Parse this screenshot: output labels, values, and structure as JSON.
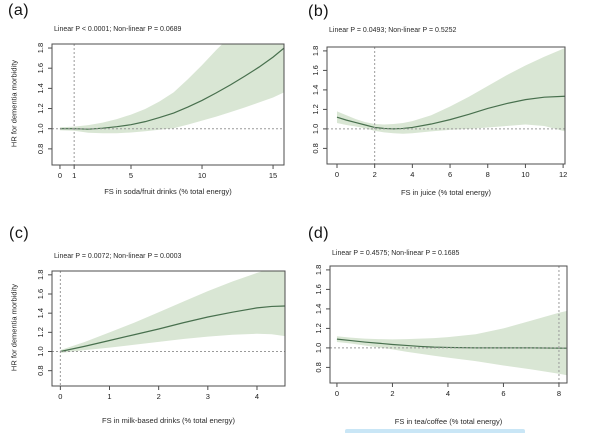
{
  "figure": {
    "background": "#ffffff",
    "description_artifact": "light-blue selection highlight strip cut off at bottom edge"
  },
  "colors": {
    "band": "#d9e6d4",
    "line": "#48704e",
    "ref": "#9a9a9a",
    "axis": "#4d4d4d",
    "tick_text": "#1b1b1b",
    "artifact": "#c9e6f6"
  },
  "chart_data": [
    {
      "type": "line",
      "panel_label": "(a)",
      "title": "Linear P < 0.0001; Non-linear P = 0.0689",
      "xlabel": "FS in soda/fruit drinks (% total energy)",
      "ylabel": "HR for dementia morbidity",
      "xlim": [
        -0.56,
        15.77
      ],
      "ylim": [
        0.64,
        1.84
      ],
      "xticks": [
        0,
        1,
        5,
        10,
        15
      ],
      "yticks": [
        0.8,
        1.0,
        1.2,
        1.4,
        1.6,
        1.8
      ],
      "hline": 1.0,
      "vline": 1,
      "grid": false,
      "legend": null,
      "series": [
        {
          "name": "HR estimate",
          "x": [
            0,
            1,
            2,
            3,
            4,
            5,
            6,
            7,
            8,
            9,
            10,
            11,
            12,
            13,
            14,
            15,
            15.77
          ],
          "y": [
            1.0,
            1.0,
            0.995,
            1.005,
            1.02,
            1.04,
            1.07,
            1.11,
            1.155,
            1.215,
            1.28,
            1.355,
            1.435,
            1.52,
            1.61,
            1.71,
            1.8
          ]
        }
      ],
      "band": {
        "x": [
          0,
          1,
          2,
          3,
          4,
          5,
          6,
          7,
          8,
          9,
          10,
          11,
          12,
          13,
          14,
          15,
          15.77
        ],
        "upper": [
          1.015,
          1.02,
          1.035,
          1.06,
          1.095,
          1.14,
          1.195,
          1.27,
          1.36,
          1.49,
          1.63,
          1.78,
          1.92,
          2.05,
          2.15,
          2.25,
          2.32
        ],
        "lower": [
          0.985,
          0.98,
          0.96,
          0.955,
          0.955,
          0.962,
          0.975,
          0.99,
          1.005,
          1.04,
          1.08,
          1.12,
          1.165,
          1.21,
          1.26,
          1.31,
          1.36
        ]
      }
    },
    {
      "type": "line",
      "panel_label": "(b)",
      "title": "Linear P = 0.0493; Non-linear P = 0.5252",
      "xlabel": "FS in juice (% total energy)",
      "ylabel": "",
      "xlim": [
        -0.53,
        12.1
      ],
      "ylim": [
        0.64,
        1.84
      ],
      "xticks": [
        0,
        2,
        4,
        6,
        8,
        10,
        12
      ],
      "yticks": [
        0.8,
        1.0,
        1.2,
        1.4,
        1.6,
        1.8
      ],
      "hline": 1.0,
      "vline": 2,
      "grid": false,
      "legend": null,
      "series": [
        {
          "name": "HR estimate",
          "x": [
            0,
            0.5,
            1,
            1.5,
            2,
            2.5,
            3,
            3.5,
            4,
            5,
            6,
            7,
            8,
            9,
            10,
            11,
            12.1
          ],
          "y": [
            1.12,
            1.09,
            1.065,
            1.04,
            1.015,
            1.005,
            1.0,
            1.005,
            1.015,
            1.05,
            1.095,
            1.15,
            1.21,
            1.26,
            1.3,
            1.325,
            1.335
          ]
        }
      ],
      "band": {
        "x": [
          0,
          0.5,
          1,
          1.5,
          2,
          2.5,
          3,
          3.5,
          4,
          5,
          6,
          7,
          8,
          9,
          10,
          11,
          12.1
        ],
        "upper": [
          1.18,
          1.14,
          1.1,
          1.07,
          1.05,
          1.045,
          1.05,
          1.06,
          1.08,
          1.14,
          1.23,
          1.33,
          1.44,
          1.55,
          1.65,
          1.74,
          1.83
        ],
        "lower": [
          1.06,
          1.04,
          1.025,
          1.005,
          0.98,
          0.965,
          0.955,
          0.95,
          0.955,
          0.975,
          0.99,
          1.0,
          1.015,
          1.03,
          1.045,
          1.03,
          0.975
        ]
      }
    },
    {
      "type": "line",
      "panel_label": "(c)",
      "title": "Linear P = 0.0072; Non-linear P = 0.0003",
      "xlabel": "FS in milk-based drinks (% total energy)",
      "ylabel": "HR for dementia morbidity",
      "xlim": [
        -0.17,
        4.57
      ],
      "ylim": [
        0.64,
        1.84
      ],
      "xticks": [
        0,
        1,
        2,
        3,
        4
      ],
      "yticks": [
        0.8,
        1.0,
        1.2,
        1.4,
        1.6,
        1.8
      ],
      "hline": 1.0,
      "vline": 0,
      "grid": false,
      "legend": null,
      "series": [
        {
          "name": "HR estimate",
          "x": [
            0,
            0.5,
            1,
            1.5,
            2,
            2.5,
            3,
            3.5,
            4,
            4.3,
            4.57
          ],
          "y": [
            1.0,
            1.055,
            1.115,
            1.175,
            1.235,
            1.3,
            1.36,
            1.41,
            1.455,
            1.47,
            1.475
          ]
        }
      ],
      "band": {
        "x": [
          0,
          0.5,
          1,
          1.5,
          2,
          2.5,
          3,
          3.5,
          4,
          4.3,
          4.57
        ],
        "upper": [
          1.015,
          1.1,
          1.2,
          1.3,
          1.41,
          1.52,
          1.63,
          1.73,
          1.82,
          1.87,
          1.92
        ],
        "lower": [
          0.985,
          1.015,
          1.04,
          1.07,
          1.1,
          1.13,
          1.155,
          1.175,
          1.185,
          1.18,
          1.16
        ]
      }
    },
    {
      "type": "line",
      "panel_label": "(d)",
      "title": "Linear P = 0.4575; Non-linear P = 0.1685",
      "xlabel": "FS in tea/coffee (% total energy)",
      "ylabel": "",
      "xlim": [
        -0.25,
        8.29
      ],
      "ylim": [
        0.64,
        1.84
      ],
      "xticks": [
        0,
        2,
        4,
        6,
        8
      ],
      "yticks": [
        0.8,
        1.0,
        1.2,
        1.4,
        1.6,
        1.8
      ],
      "hline": 1.0,
      "vline": 8,
      "grid": false,
      "legend": null,
      "series": [
        {
          "name": "HR estimate",
          "x": [
            0,
            0.5,
            1,
            1.5,
            2,
            2.5,
            3,
            3.5,
            4,
            5,
            6,
            7,
            8,
            8.29
          ],
          "y": [
            1.09,
            1.075,
            1.06,
            1.048,
            1.035,
            1.025,
            1.015,
            1.008,
            1.005,
            1.0,
            1.0,
            1.0,
            0.998,
            0.997
          ]
        }
      ],
      "band": {
        "x": [
          0,
          0.5,
          1,
          1.5,
          2,
          2.5,
          3,
          3.5,
          4,
          5,
          6,
          7,
          8,
          8.29
        ],
        "upper": [
          1.12,
          1.105,
          1.095,
          1.09,
          1.088,
          1.09,
          1.095,
          1.1,
          1.11,
          1.14,
          1.2,
          1.28,
          1.36,
          1.38
        ],
        "lower": [
          1.06,
          1.045,
          1.025,
          1.005,
          0.985,
          0.96,
          0.94,
          0.92,
          0.9,
          0.865,
          0.82,
          0.78,
          0.735,
          0.72
        ]
      }
    }
  ]
}
